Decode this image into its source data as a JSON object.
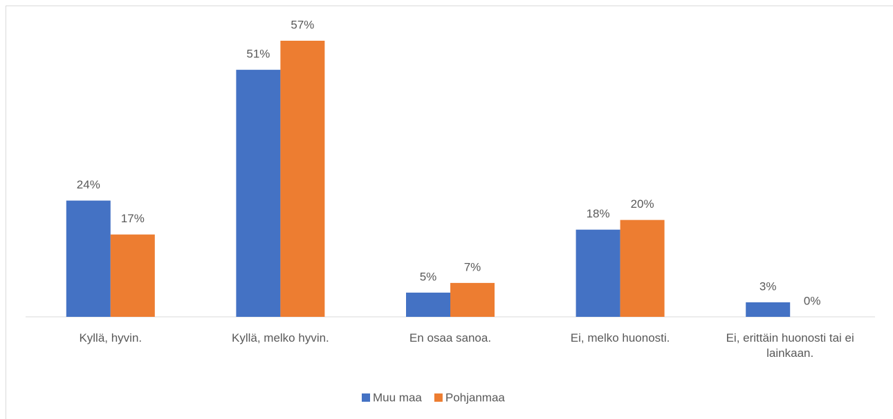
{
  "chart_data": {
    "type": "bar",
    "categories": [
      "Kyllä, hyvin.",
      "Kyllä, melko hyvin.",
      "En osaa sanoa.",
      "Ei, melko huonosti.",
      "Ei, erittäin huonosti tai ei lainkaan."
    ],
    "series": [
      {
        "name": "Muu maa",
        "color": "#4472c4",
        "values": [
          24,
          51,
          5,
          18,
          3
        ],
        "value_labels": [
          "24%",
          "51%",
          "5%",
          "18%",
          "3%"
        ]
      },
      {
        "name": "Pohjanmaa",
        "color": "#ed7d31",
        "values": [
          17,
          57,
          7,
          20,
          0
        ],
        "value_labels": [
          "17%",
          "57%",
          "7%",
          "20%",
          "0%"
        ]
      }
    ],
    "legend": "bottom"
  }
}
